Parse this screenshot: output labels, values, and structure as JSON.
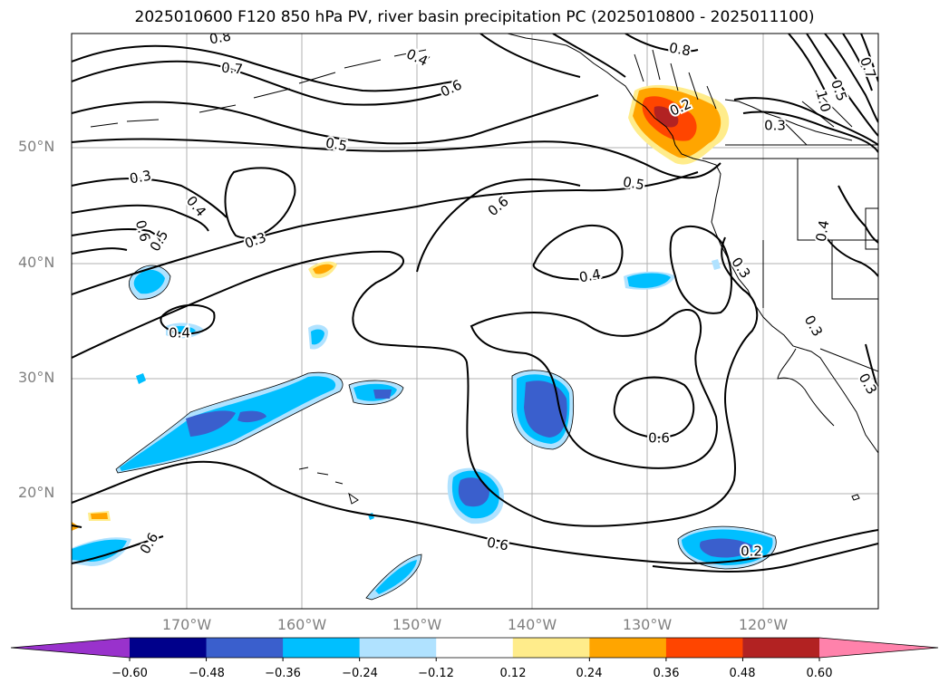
{
  "title": "2025010600 F120 850 hPa PV, river basin precipitation PC (2025010800 - 2025011100)",
  "lat_labels": [
    "50°N",
    "40°N",
    "30°N",
    "20°N"
  ],
  "lon_labels": [
    "170°W",
    "160°W",
    "150°W",
    "140°W",
    "130°W",
    "120°W"
  ],
  "contour_labels": [
    "0.8",
    "0.7",
    "0.7",
    "0.6",
    "0.5",
    "0.3",
    "0.4",
    "0.6",
    "0.5",
    "0.3",
    "0.4",
    "0.6",
    "0.5",
    "0.4",
    "0.3",
    "0.6",
    "0.6",
    "0.6",
    "0.2",
    "0.2",
    "0.3",
    "0.4",
    "0.3",
    "0.7",
    "1.0",
    "0.5",
    "0.8",
    "0.3",
    "0.4"
  ],
  "colorbar": {
    "ticks": [
      "−0.60",
      "−0.48",
      "−0.36",
      "−0.24",
      "−0.12",
      "0.12",
      "0.24",
      "0.36",
      "0.48",
      "0.60"
    ],
    "colors": [
      "#9932cc",
      "#00008b",
      "#3a5fcd",
      "#00bfff",
      "#b0e2ff",
      "#ffffff",
      "#ffec8b",
      "#ffa500",
      "#ff4500",
      "#b22222",
      "#ff82ab"
    ]
  }
}
